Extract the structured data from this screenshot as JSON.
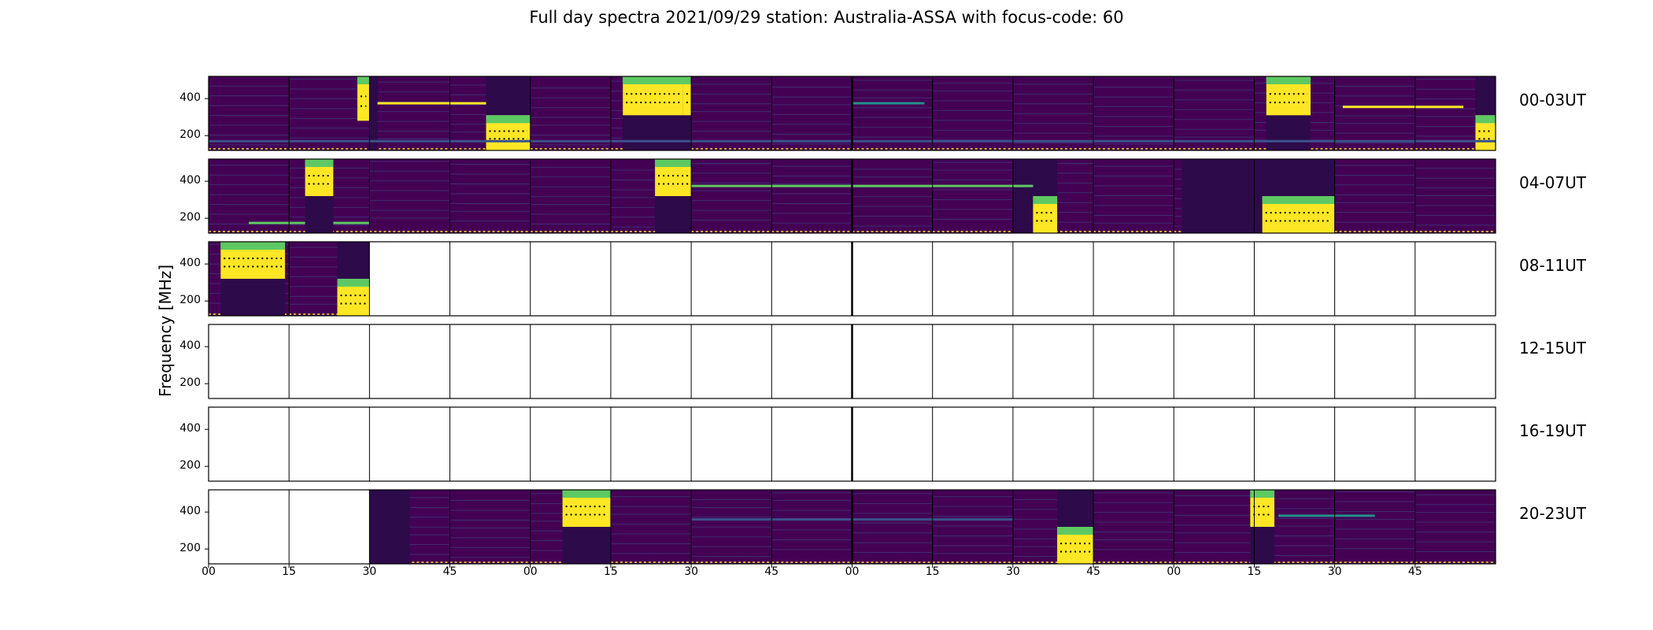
{
  "title": "Full day spectra 2021/09/29 station: Australia-ASSA with focus-code: 60",
  "ylabel": "Frequency [MHz]",
  "colors": {
    "background": "#440154",
    "medium": "#3b528b",
    "teal": "#21918c",
    "green": "#5ec962",
    "yellow": "#fde725",
    "empty": "#ffffff",
    "divider": "#000000"
  },
  "chart_data": {
    "type": "heatmap",
    "colormap": "viridis",
    "rows": [
      {
        "label": "00-03UT",
        "panels": 16,
        "data_panels": [
          0,
          1,
          2,
          3,
          4,
          5,
          6,
          7,
          8,
          9,
          10,
          11,
          12,
          13,
          14,
          15
        ]
      },
      {
        "label": "04-07UT",
        "panels": 16,
        "data_panels": [
          0,
          1,
          2,
          3,
          4,
          5,
          6,
          7,
          8,
          9,
          10,
          11,
          12,
          13,
          14,
          15
        ]
      },
      {
        "label": "08-11UT",
        "panels": 16,
        "data_panels": [
          0,
          1
        ]
      },
      {
        "label": "12-15UT",
        "panels": 16,
        "data_panels": []
      },
      {
        "label": "16-19UT",
        "panels": 16,
        "data_panels": []
      },
      {
        "label": "20-23UT",
        "panels": 16,
        "data_panels": [
          2,
          3,
          4,
          5,
          6,
          7,
          8,
          9,
          10,
          11,
          12,
          13,
          14,
          15
        ]
      }
    ],
    "yticks": [
      "400",
      "200"
    ],
    "xticks": [
      "00",
      "15",
      "30",
      "45",
      "00",
      "15",
      "30",
      "45",
      "00",
      "15",
      "30",
      "45",
      "00",
      "15",
      "30",
      "45"
    ],
    "frequency_range_mhz": [
      120,
      520
    ],
    "bright_events": [
      {
        "row": 0,
        "panel": 1.85,
        "width": 0.15,
        "fmin": 280,
        "fmax": 520
      },
      {
        "row": 0,
        "panel": 3.45,
        "width": 0.55,
        "fmin": 120,
        "fmax": 310
      },
      {
        "row": 0,
        "panel": 5.15,
        "width": 0.75,
        "fmin": 310,
        "fmax": 520
      },
      {
        "row": 0,
        "panel": 5.9,
        "width": 0.1,
        "fmin": 310,
        "fmax": 520
      },
      {
        "row": 0,
        "panel": 13.15,
        "width": 0.55,
        "fmin": 310,
        "fmax": 520
      },
      {
        "row": 0,
        "panel": 15.75,
        "width": 0.25,
        "fmin": 120,
        "fmax": 310
      },
      {
        "row": 1,
        "panel": 1.2,
        "width": 0.35,
        "fmin": 320,
        "fmax": 520
      },
      {
        "row": 1,
        "panel": 5.55,
        "width": 0.45,
        "fmin": 320,
        "fmax": 520
      },
      {
        "row": 1,
        "panel": 10.25,
        "width": 0.3,
        "fmin": 120,
        "fmax": 320
      },
      {
        "row": 1,
        "panel": 13.1,
        "width": 0.9,
        "fmin": 120,
        "fmax": 320
      },
      {
        "row": 2,
        "panel": 0.15,
        "width": 0.8,
        "fmin": 320,
        "fmax": 520
      },
      {
        "row": 2,
        "panel": 1.6,
        "width": 0.4,
        "fmin": 120,
        "fmax": 320
      },
      {
        "row": 5,
        "panel": 4.4,
        "width": 0.6,
        "fmin": 320,
        "fmax": 520
      },
      {
        "row": 5,
        "panel": 10.55,
        "width": 0.45,
        "fmin": 120,
        "fmax": 320
      },
      {
        "row": 5,
        "panel": 12.95,
        "width": 0.3,
        "fmin": 320,
        "fmax": 520
      }
    ],
    "dark_blocks": [
      {
        "row": 0,
        "panel": 2.0,
        "width": 0.1
      },
      {
        "row": 0,
        "panel": 3.45,
        "width": 0.55
      },
      {
        "row": 0,
        "panel": 5.15,
        "width": 0.85
      },
      {
        "row": 0,
        "panel": 13.15,
        "width": 0.55
      },
      {
        "row": 0,
        "panel": 15.75,
        "width": 0.25
      },
      {
        "row": 1,
        "panel": 1.2,
        "width": 0.35
      },
      {
        "row": 1,
        "panel": 5.55,
        "width": 0.45
      },
      {
        "row": 1,
        "panel": 10.0,
        "width": 0.55
      },
      {
        "row": 1,
        "panel": 12.1,
        "width": 1.9
      },
      {
        "row": 2,
        "panel": 0.15,
        "width": 0.8
      },
      {
        "row": 2,
        "panel": 1.6,
        "width": 0.4
      },
      {
        "row": 5,
        "panel": 2.0,
        "width": 0.5
      },
      {
        "row": 5,
        "panel": 4.4,
        "width": 0.6
      },
      {
        "row": 5,
        "panel": 10.55,
        "width": 0.45
      },
      {
        "row": 5,
        "panel": 12.95,
        "width": 0.3
      }
    ],
    "horizontal_lines": [
      {
        "row": 0,
        "from": 0,
        "to": 16,
        "freq": 170,
        "intensity": "medium"
      },
      {
        "row": 0,
        "from": 2.1,
        "to": 3.45,
        "freq": 375,
        "intensity": "yellow"
      },
      {
        "row": 0,
        "from": 8.0,
        "to": 8.9,
        "freq": 375,
        "intensity": "teal"
      },
      {
        "row": 0,
        "from": 14.1,
        "to": 15.6,
        "freq": 355,
        "intensity": "yellow"
      },
      {
        "row": 1,
        "from": 6.0,
        "to": 10.25,
        "freq": 375,
        "intensity": "green"
      },
      {
        "row": 1,
        "from": 0.5,
        "to": 1.2,
        "freq": 175,
        "intensity": "green"
      },
      {
        "row": 1,
        "from": 1.55,
        "to": 2.0,
        "freq": 175,
        "intensity": "green"
      },
      {
        "row": 5,
        "from": 6.0,
        "to": 10.0,
        "freq": 360,
        "intensity": "medium"
      },
      {
        "row": 5,
        "from": 13.3,
        "to": 14.5,
        "freq": 380,
        "intensity": "teal"
      }
    ]
  }
}
